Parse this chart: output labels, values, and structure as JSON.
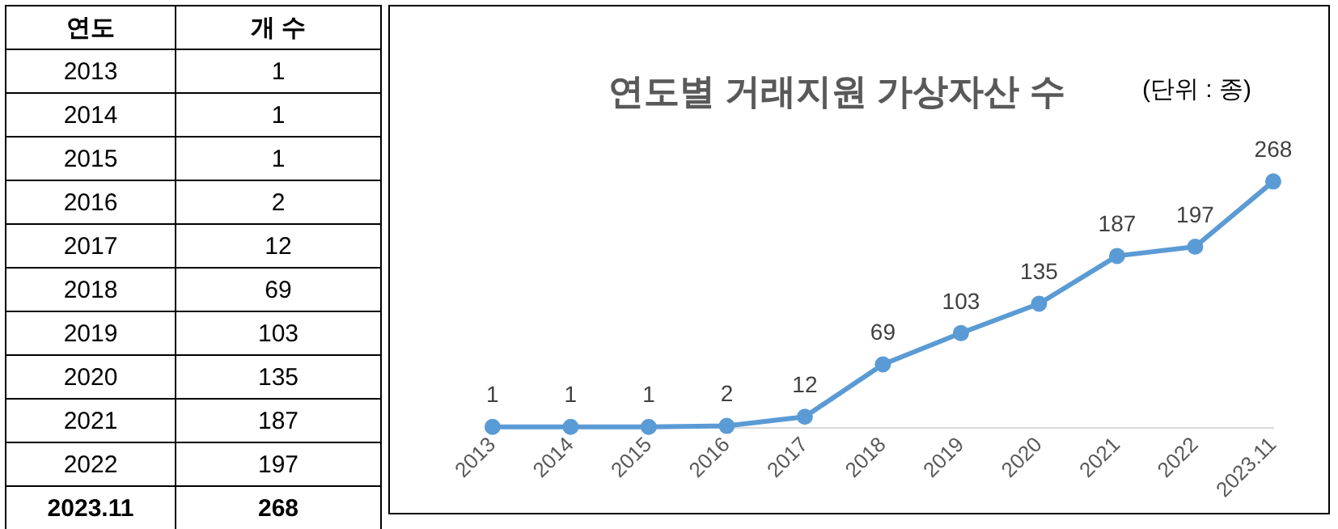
{
  "chart_data": [
    {
      "type": "heatmap",
      "ylabel": "연도",
      "categories": [
        "개 수"
      ],
      "y_categories": [
        "2013",
        "2014",
        "2015",
        "2016",
        "2017",
        "2018",
        "2019",
        "2020",
        "2021",
        "2022",
        "2023.11"
      ],
      "cells": [
        [
          1
        ],
        [
          1
        ],
        [
          1
        ],
        [
          2
        ],
        [
          12
        ],
        [
          69
        ],
        [
          103
        ],
        [
          135
        ],
        [
          187
        ],
        [
          197
        ],
        [
          268
        ]
      ],
      "data_labels": true
    },
    {
      "type": "line",
      "title": "연도별 거래지원 가상자산 수",
      "subtitle": "(단위 : 종)",
      "categories": [
        "2013",
        "2014",
        "2015",
        "2016",
        "2017",
        "2018",
        "2019",
        "2020",
        "2021",
        "2022",
        "2023.11"
      ],
      "values": [
        1,
        1,
        1,
        2,
        12,
        69,
        103,
        135,
        187,
        197,
        268
      ],
      "color": "#5b9bd5",
      "marker": "circle",
      "line_style": "solid",
      "data_labels": true,
      "grid": false,
      "legend": false
    }
  ]
}
